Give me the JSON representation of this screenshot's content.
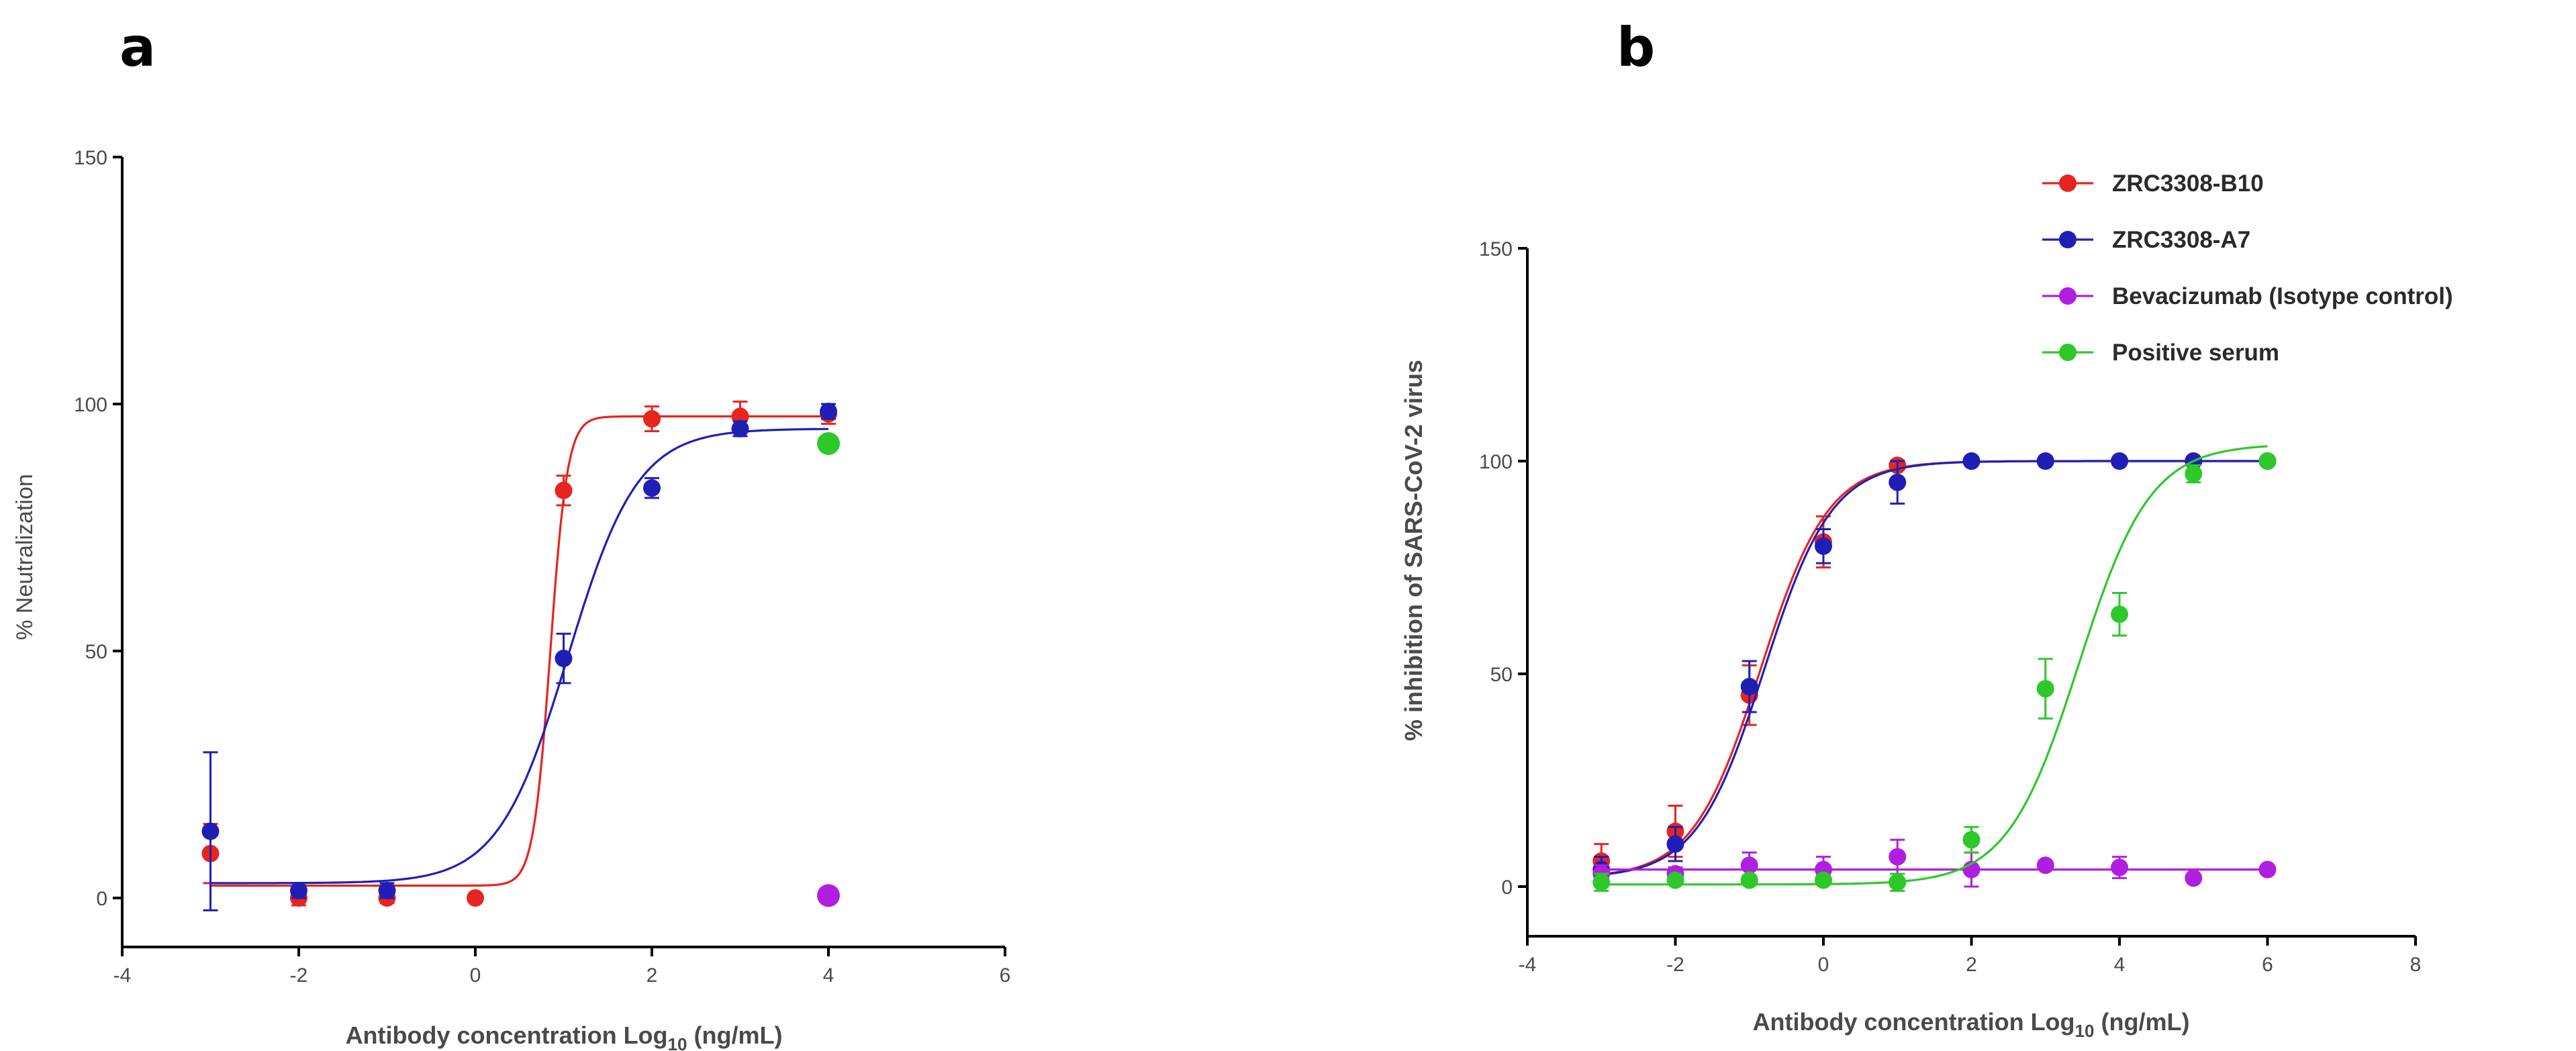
{
  "chart_data": [
    {
      "panel": "a",
      "type": "scatter",
      "xlabel": "Antibody concentration Log",
      "xlabel_sub": "10",
      "xlabel_unit": " (ng/mL)",
      "ylabel": "% Neutralization",
      "xlim": [
        -4,
        6
      ],
      "ylim": [
        -10,
        150
      ],
      "xticks": [
        -4,
        -2,
        0,
        2,
        4,
        6
      ],
      "yticks": [
        0,
        50,
        100,
        150
      ],
      "series": [
        {
          "color": "#e8241f",
          "curve": {
            "bottom": 2.5,
            "top": 97.5,
            "log_ec50": 0.85,
            "hill": 4.5
          },
          "points": [
            {
              "x": -3,
              "y": 9,
              "err": 6
            },
            {
              "x": -2,
              "y": 0,
              "err": 1.5
            },
            {
              "x": -1,
              "y": 0,
              "err": 1
            },
            {
              "x": 0,
              "y": 0,
              "err": 0.5
            },
            {
              "x": 1,
              "y": 82.5,
              "err": 3
            },
            {
              "x": 2,
              "y": 97,
              "err": 2.5
            },
            {
              "x": 3,
              "y": 97.5,
              "err": 3
            },
            {
              "x": 4,
              "y": 98,
              "err": 2
            }
          ]
        },
        {
          "color": "#1f1fb5",
          "curve": {
            "bottom": 3,
            "top": 95,
            "log_ec50": 1.05,
            "hill": 1.1
          },
          "points": [
            {
              "x": -3,
              "y": 13.5,
              "err": 16
            },
            {
              "x": -2,
              "y": 1.5,
              "err": 1.5
            },
            {
              "x": -1,
              "y": 1.5,
              "err": 1.5
            },
            {
              "x": 1,
              "y": 48.5,
              "err": 5
            },
            {
              "x": 2,
              "y": 83,
              "err": 2
            },
            {
              "x": 3,
              "y": 95,
              "err": 1.5
            },
            {
              "x": 4,
              "y": 98.5,
              "err": 1.5
            }
          ]
        },
        {
          "color": "#b01fe0",
          "points": [
            {
              "x": 4,
              "y": 0.5,
              "err": 0
            }
          ]
        },
        {
          "color": "#2ec82a",
          "points": [
            {
              "x": 4,
              "y": 92,
              "err": 0
            }
          ]
        }
      ]
    },
    {
      "panel": "b",
      "type": "scatter",
      "xlabel": "Antibody concentration Log",
      "xlabel_sub": "10",
      "xlabel_unit": " (ng/mL)",
      "ylabel": "% inhibition of SARS-CoV-2 virus",
      "xlim": [
        -4,
        8
      ],
      "ylim": [
        -10,
        150
      ],
      "xticks": [
        -4,
        -2,
        0,
        2,
        4,
        6,
        8
      ],
      "yticks": [
        0,
        50,
        100,
        150
      ],
      "legend": "top-right",
      "series": [
        {
          "name": "ZRC3308-B10",
          "color": "#e8241f",
          "curve": {
            "bottom": 2,
            "top": 100,
            "log_ec50": -0.85,
            "hill": 0.95
          },
          "points": [
            {
              "x": -3,
              "y": 6,
              "err": 4
            },
            {
              "x": -2,
              "y": 13,
              "err": 6
            },
            {
              "x": -1,
              "y": 45,
              "err": 7
            },
            {
              "x": 0,
              "y": 81,
              "err": 6
            },
            {
              "x": 1,
              "y": 99,
              "err": 1
            },
            {
              "x": 2,
              "y": 100,
              "err": 0.5
            },
            {
              "x": 3,
              "y": 100,
              "err": 0.5
            },
            {
              "x": 4,
              "y": 100,
              "err": 0.5
            },
            {
              "x": 5,
              "y": 100,
              "err": 0.5
            },
            {
              "x": 6,
              "y": 100,
              "err": 0.5
            }
          ]
        },
        {
          "name": "ZRC3308-A7",
          "color": "#1f1fb5",
          "curve": {
            "bottom": 2,
            "top": 100,
            "log_ec50": -0.8,
            "hill": 0.95
          },
          "points": [
            {
              "x": -3,
              "y": 4,
              "err": 3
            },
            {
              "x": -2,
              "y": 10,
              "err": 4
            },
            {
              "x": -1,
              "y": 47,
              "err": 6
            },
            {
              "x": 0,
              "y": 80,
              "err": 4
            },
            {
              "x": 1,
              "y": 95,
              "err": 5
            },
            {
              "x": 2,
              "y": 100,
              "err": 0.5
            },
            {
              "x": 3,
              "y": 100,
              "err": 0.5
            },
            {
              "x": 4,
              "y": 100,
              "err": 0.5
            },
            {
              "x": 5,
              "y": 100,
              "err": 0.5
            },
            {
              "x": 6,
              "y": 100,
              "err": 0.5
            }
          ]
        },
        {
          "name": "Bevacizumab (Isotype control)",
          "color": "#b01fe0",
          "curve": {
            "bottom": 4,
            "top": 4,
            "log_ec50": 0,
            "hill": 1
          },
          "points": [
            {
              "x": -3,
              "y": 3,
              "err": 2
            },
            {
              "x": -2,
              "y": 3,
              "err": 1.5
            },
            {
              "x": -1,
              "y": 5,
              "err": 3
            },
            {
              "x": 0,
              "y": 4,
              "err": 3
            },
            {
              "x": 1,
              "y": 7,
              "err": 4
            },
            {
              "x": 2,
              "y": 4,
              "err": 4
            },
            {
              "x": 3,
              "y": 5,
              "err": 1
            },
            {
              "x": 4,
              "y": 4.5,
              "err": 2.5
            },
            {
              "x": 5,
              "y": 2,
              "err": 0.5
            },
            {
              "x": 6,
              "y": 4,
              "err": 0.5
            }
          ]
        },
        {
          "name": "Positive serum",
          "color": "#2ec82a",
          "curve": {
            "bottom": 0.5,
            "top": 104,
            "log_ec50": 3.45,
            "hill": 0.9
          },
          "points": [
            {
              "x": -3,
              "y": 1,
              "err": 2
            },
            {
              "x": -2,
              "y": 1.5,
              "err": 1
            },
            {
              "x": -1,
              "y": 1.5,
              "err": 1
            },
            {
              "x": 0,
              "y": 1.5,
              "err": 1
            },
            {
              "x": 1,
              "y": 1,
              "err": 2
            },
            {
              "x": 2,
              "y": 11,
              "err": 3
            },
            {
              "x": 3,
              "y": 46.5,
              "err": 7
            },
            {
              "x": 4,
              "y": 64,
              "err": 5
            },
            {
              "x": 5,
              "y": 97,
              "err": 2
            },
            {
              "x": 6,
              "y": 100,
              "err": 0.5
            }
          ]
        }
      ]
    }
  ]
}
